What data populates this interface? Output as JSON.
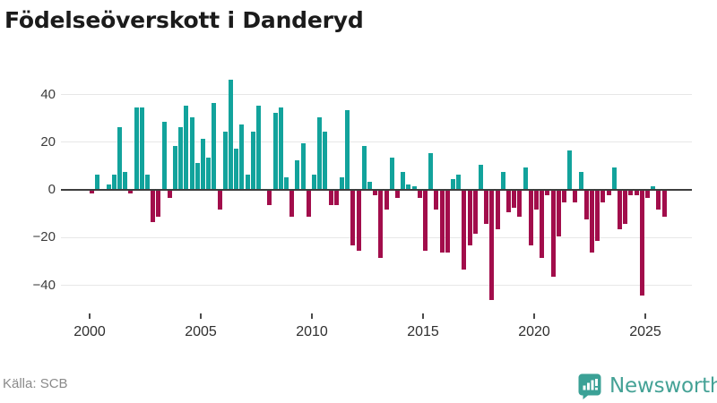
{
  "title": "Födelseöverskott i Danderyd",
  "source": {
    "label": "Källa: SCB"
  },
  "logo": {
    "text": "Newsworthy",
    "icon": "newsworthy-bars-speech-bubble",
    "color": "#45a296"
  },
  "chart_data": {
    "type": "bar",
    "title": "Födelseöverskott i Danderyd",
    "xlabel": "",
    "ylabel": "",
    "period": "quarterly",
    "start_year": 2000,
    "start_quarter": 1,
    "end_year": 2025,
    "end_quarter": 4,
    "x_tick_labels": [
      "2000",
      "2005",
      "2010",
      "2015",
      "2020",
      "2025"
    ],
    "y_tick_values": [
      40,
      20,
      0,
      -20,
      -40
    ],
    "y_tick_labels": [
      "40",
      "20",
      "0",
      "−20",
      "−40"
    ],
    "ylim": [
      -48,
      46
    ],
    "grid": true,
    "legend": "none",
    "colors": {
      "positive": "#12a39c",
      "negative": "#a20d4b",
      "grid": "#e7e7e7",
      "zero_axis": "#3d3d3d"
    },
    "values": [
      -1,
      6,
      0,
      2,
      6,
      26,
      7,
      -1,
      34,
      34,
      6,
      -13,
      -11,
      28,
      -3,
      18,
      26,
      35,
      30,
      11,
      21,
      13,
      36,
      -8,
      24,
      46,
      17,
      27,
      6,
      24,
      35,
      0,
      -6,
      32,
      34,
      5,
      -11,
      12,
      19,
      -11,
      6,
      30,
      24,
      -6,
      -6,
      5,
      33,
      -23,
      -25,
      18,
      3,
      -2,
      -28,
      -8,
      13,
      -3,
      7,
      2,
      1,
      -3,
      -25,
      15,
      -8,
      -26,
      -26,
      4,
      6,
      -33,
      -23,
      -18,
      10,
      -14,
      -46,
      -16,
      7,
      -9,
      -7,
      -11,
      9,
      -23,
      -8,
      -28,
      -2,
      -36,
      -19,
      -5,
      16,
      -5,
      7,
      -12,
      -26,
      -21,
      -5,
      -2,
      9,
      -16,
      -14,
      -2,
      -2,
      -44,
      -3,
      1,
      -8,
      -11
    ]
  }
}
